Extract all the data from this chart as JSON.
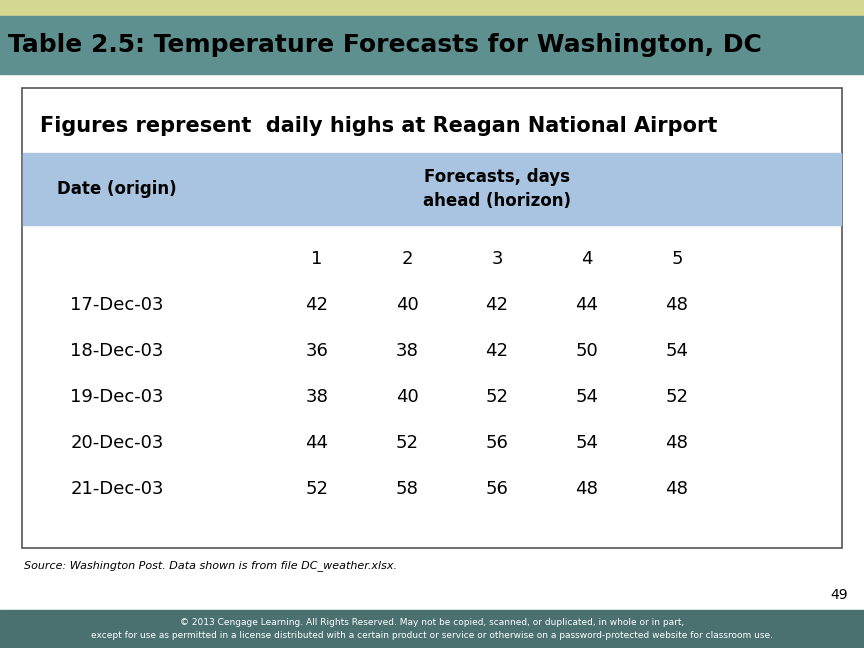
{
  "title": "Table 2.5: Temperature Forecasts for Washington, DC",
  "subtitle": "Figures represent  daily highs at Reagan National Airport",
  "header_col": "Date (origin)",
  "header_span": "Forecasts, days\nahead (horizon)",
  "col_numbers": [
    "1",
    "2",
    "3",
    "4",
    "5"
  ],
  "dates": [
    "17-Dec-03",
    "18-Dec-03",
    "19-Dec-03",
    "20-Dec-03",
    "21-Dec-03"
  ],
  "data": [
    [
      42,
      40,
      42,
      44,
      48
    ],
    [
      36,
      38,
      42,
      50,
      54
    ],
    [
      38,
      40,
      52,
      54,
      52
    ],
    [
      44,
      52,
      56,
      54,
      48
    ],
    [
      52,
      58,
      56,
      48,
      48
    ]
  ],
  "source_text": "Source: Washington Post. Data shown is from file DC_weather.xlsx.",
  "page_num": "49",
  "copyright_text": "© 2013 Cengage Learning. All Rights Reserved. May not be copied, scanned, or duplicated, in whole or in part,\nexcept for use as permitted in a license distributed with a certain product or service or otherwise on a password-protected website for classroom use.",
  "bg_color": "#ffffff",
  "title_bg_color": "#5f9090",
  "header_stripe_color": "#a8c4e0",
  "top_stripe_color": "#d4d891",
  "title_text_color": "#000000",
  "table_border_color": "#555555",
  "bottom_bar_color": "#4a7070",
  "fig_width": 8.64,
  "fig_height": 6.48
}
